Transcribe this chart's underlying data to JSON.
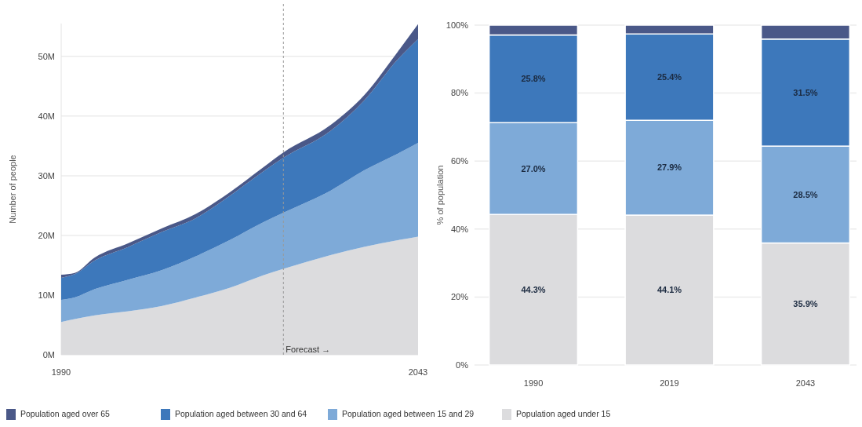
{
  "chart_data": [
    {
      "type": "area",
      "stacked": true,
      "ylabel": "Number of people",
      "x": [
        1990,
        1992,
        1995,
        2000,
        2005,
        2010,
        2015,
        2020,
        2023,
        2030,
        2035,
        2040,
        2043
      ],
      "xlim": [
        1990,
        2043
      ],
      "xticks": [
        1990,
        2043
      ],
      "ylim": [
        0,
        55.5
      ],
      "yticks": [
        {
          "value": 0,
          "label": "0M"
        },
        {
          "value": 10,
          "label": "10M"
        },
        {
          "value": 20,
          "label": "20M"
        },
        {
          "value": 30,
          "label": "30M"
        },
        {
          "value": 40,
          "label": "40M"
        },
        {
          "value": 50,
          "label": "50M"
        }
      ],
      "grid": "y",
      "legend": "bottom",
      "ref_lines": [
        {
          "axis": "x",
          "value": 2023,
          "label": "Forecast →",
          "color": "#999999",
          "line_style": "dashed"
        }
      ],
      "series": [
        {
          "name": "Population aged under 15",
          "color": "#dcdcde",
          "values": [
            5.5,
            6.0,
            6.6,
            7.3,
            8.2,
            9.6,
            11.2,
            13.3,
            14.4,
            16.7,
            18.1,
            19.2,
            19.8
          ]
        },
        {
          "name": "Population aged between 15 and 29",
          "color": "#7eaad8",
          "values": [
            3.7,
            3.6,
            4.4,
            5.3,
            6.0,
            6.9,
            8.0,
            8.9,
            9.4,
            10.8,
            12.8,
            14.5,
            15.7
          ]
        },
        {
          "name": "Population aged between 30 and 64",
          "color": "#3d78bb",
          "values": [
            3.7,
            3.9,
            4.8,
            5.5,
            6.4,
            6.4,
            7.4,
            8.5,
            9.2,
            10.0,
            11.7,
            15.8,
            17.4
          ]
        },
        {
          "name": "Population aged over 65",
          "color": "#4a5888",
          "values": [
            0.5,
            0.2,
            0.5,
            0.6,
            0.6,
            0.7,
            0.6,
            0.7,
            0.9,
            1.0,
            0.9,
            1.3,
            2.5
          ]
        }
      ]
    },
    {
      "type": "bar",
      "stacked": true,
      "ylabel": "% of population",
      "categories": [
        "1990",
        "2019",
        "2043"
      ],
      "ylim": [
        0,
        100
      ],
      "yticks": [
        {
          "value": 0,
          "label": "0%"
        },
        {
          "value": 20,
          "label": "20%"
        },
        {
          "value": 40,
          "label": "40%"
        },
        {
          "value": 60,
          "label": "60%"
        },
        {
          "value": 80,
          "label": "80%"
        },
        {
          "value": 100,
          "label": "100%"
        }
      ],
      "grid": "y",
      "series": [
        {
          "color": "#dcdcde",
          "values": [
            44.3,
            44.1,
            35.9
          ],
          "value_labels": [
            "44.3%",
            "44.1%",
            "35.9%"
          ]
        },
        {
          "color": "#7eaad8",
          "values": [
            27.0,
            27.9,
            28.5
          ],
          "value_labels": [
            "27.0%",
            "27.9%",
            "28.5%"
          ]
        },
        {
          "color": "#3d78bb",
          "values": [
            25.8,
            25.4,
            31.5
          ],
          "value_labels": [
            "25.8%",
            "25.4%",
            "31.5%"
          ]
        },
        {
          "color": "#4a5888",
          "values": [
            2.9,
            2.6,
            4.1
          ],
          "value_labels": [
            null,
            null,
            null
          ]
        }
      ]
    }
  ]
}
